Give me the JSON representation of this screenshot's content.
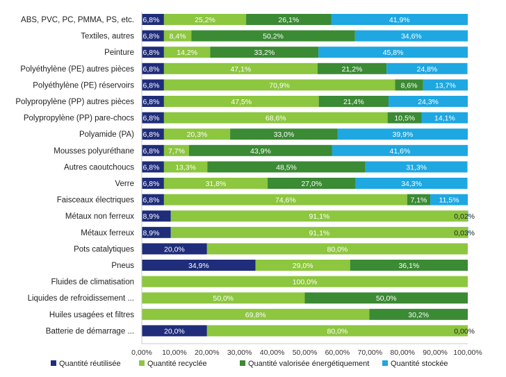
{
  "chart_data": {
    "type": "bar",
    "orientation": "horizontal",
    "stacked": true,
    "title": "",
    "xlabel": "",
    "ylabel": "",
    "xlim": [
      0,
      100
    ],
    "x_ticks": [
      "0,00%",
      "10,00%",
      "20,00%",
      "30,00%",
      "40,00%",
      "50,00%",
      "60,00%",
      "70,00%",
      "80,00%",
      "90,00%",
      "100,00%"
    ],
    "grid": false,
    "legend_position": "bottom",
    "categories": [
      "ABS, PVC, PC, PMMA, PS, etc.",
      "Textiles, autres",
      "Peinture",
      "Polyéthylène (PE) autres pièces",
      "Polyéthylène (PE) réservoirs",
      "Polypropylène (PP) autres pièces",
      "Polypropylène (PP) pare-chocs",
      "Polyamide (PA)",
      "Mousses polyuréthane",
      "Autres caoutchoucs",
      "Verre",
      "Faisceaux électriques",
      "Métaux non ferreux",
      "Métaux ferreux",
      "Pots catalytiques",
      "Pneus",
      "Fluides de climatisation",
      "Liquides de refroidissement ...",
      "Huiles usagées et filtres",
      "Batterie de démarrage ..."
    ],
    "series": [
      {
        "name": "Quantité réutilisée",
        "color": "#1f2d7a",
        "values": [
          6.8,
          6.8,
          6.8,
          6.8,
          6.8,
          6.8,
          6.8,
          6.8,
          6.8,
          6.8,
          6.8,
          6.8,
          8.9,
          8.9,
          20.0,
          34.9,
          null,
          null,
          null,
          20.0
        ],
        "labels": [
          "6,8%",
          "6,8%",
          "6,8%",
          "6,8%",
          "6,8%",
          "6,8%",
          "6,8%",
          "6,8%",
          "6,8%",
          "6,8%",
          "6,8%",
          "6,8%",
          "8,9%",
          "8,9%",
          "20,0%",
          "34,9%",
          "",
          "",
          "",
          "20,0%"
        ]
      },
      {
        "name": "Quantité recyclée",
        "color": "#8dc63f",
        "values": [
          25.2,
          8.4,
          14.2,
          47.1,
          70.9,
          47.5,
          68.6,
          20.3,
          7.7,
          13.3,
          31.8,
          74.6,
          91.1,
          91.1,
          80.0,
          29.0,
          100.0,
          50.0,
          69.8,
          80.0
        ],
        "labels": [
          "25,2%",
          "8,4%",
          "14,2%",
          "47,1%",
          "70,9%",
          "47,5%",
          "68,6%",
          "20,3%",
          "7,7%",
          "13,3%",
          "31,8%",
          "74,6%",
          "91,1%",
          "91,1%",
          "80,0%",
          "29,0%",
          "100,0%",
          "50,0%",
          "69,8%",
          "80,0%"
        ]
      },
      {
        "name": "Quantité valorisée énergétiquement",
        "color": "#3b8a34",
        "values": [
          26.1,
          50.2,
          33.2,
          21.2,
          8.6,
          21.4,
          10.5,
          33.0,
          43.9,
          48.5,
          27.0,
          7.1,
          null,
          null,
          null,
          36.1,
          null,
          50.0,
          30.2,
          null
        ],
        "labels": [
          "26,1%",
          "50,2%",
          "33,2%",
          "21,2%",
          "8,6%",
          "21,4%",
          "10,5%",
          "33,0%",
          "43,9%",
          "48,5%",
          "27,0%",
          "7,1%",
          "",
          "",
          "",
          "36,1%",
          "",
          "50,0%",
          "30,2%",
          ""
        ]
      },
      {
        "name": "Quantité stockée",
        "color": "#1ea7e1",
        "values": [
          41.9,
          34.6,
          45.8,
          24.8,
          13.7,
          24.3,
          14.1,
          39.9,
          41.6,
          31.3,
          34.3,
          11.5,
          0.02,
          0.03,
          null,
          null,
          null,
          null,
          null,
          0.0
        ],
        "labels": [
          "41,9%",
          "34,6%",
          "45,8%",
          "24,8%",
          "13,7%",
          "24,3%",
          "14,1%",
          "39,9%",
          "41,6%",
          "31,3%",
          "34,3%",
          "11,5%",
          "0,02%",
          "0,03%",
          "",
          "",
          "",
          "",
          "",
          "0,00%"
        ]
      }
    ]
  }
}
